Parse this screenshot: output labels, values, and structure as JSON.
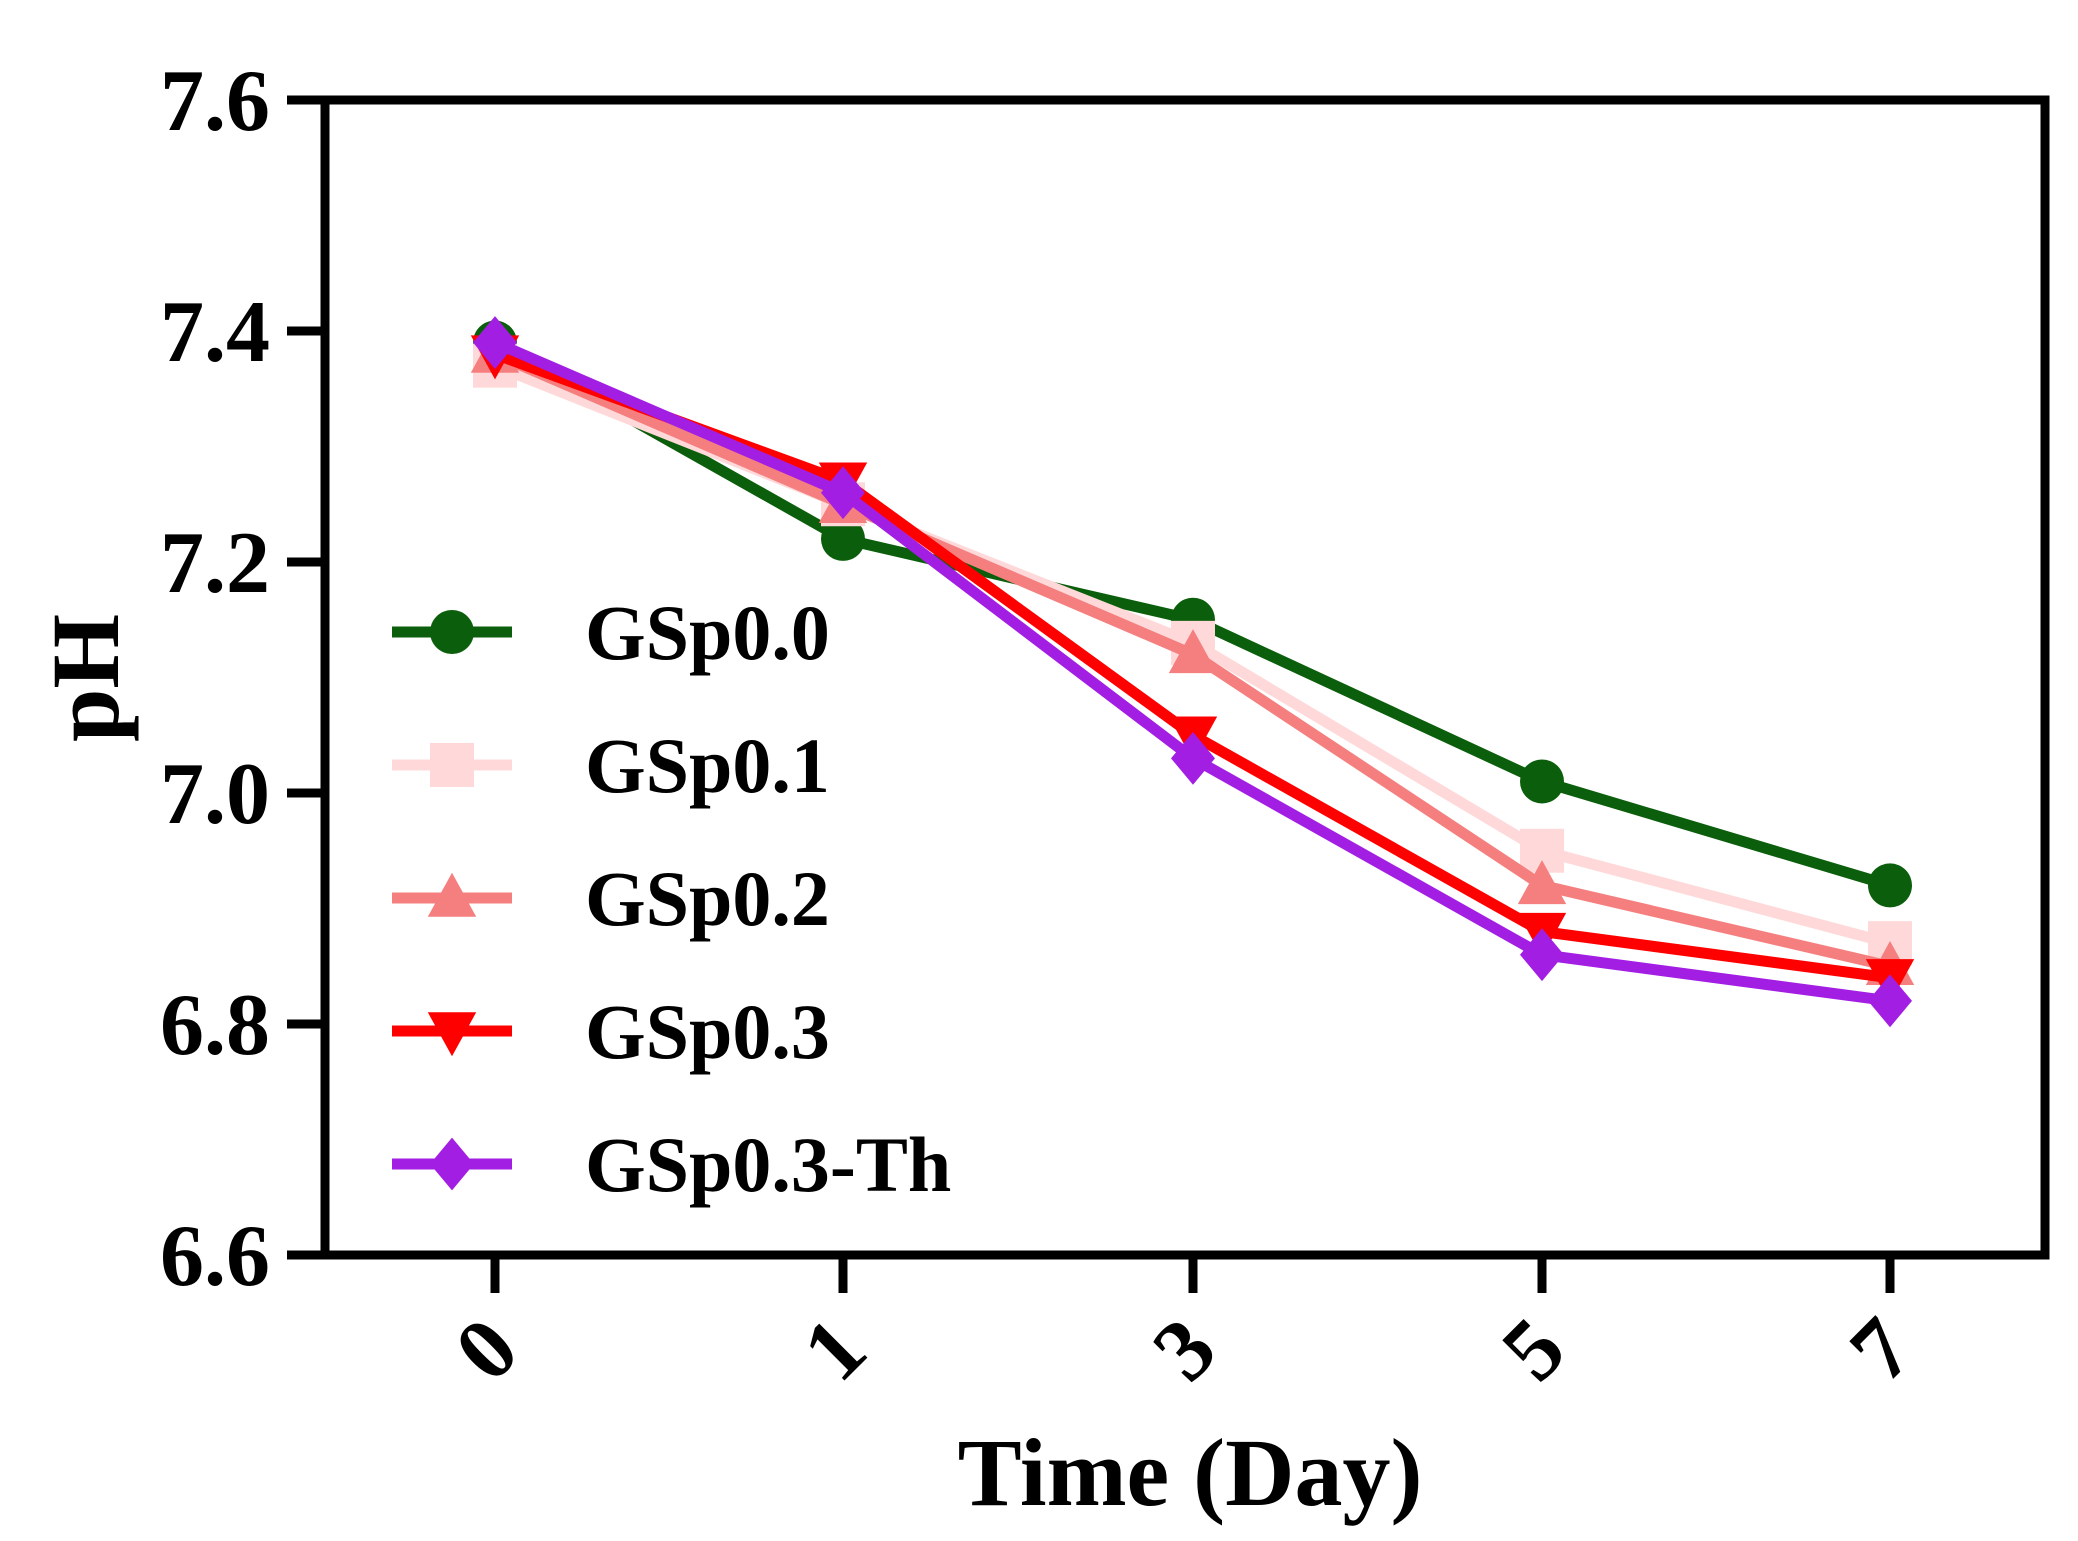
{
  "chart_data": {
    "type": "line",
    "title": "",
    "xlabel": "Time (Day)",
    "ylabel": "pH",
    "categories": [
      "0",
      "1",
      "3",
      "5",
      "7"
    ],
    "ylim": [
      6.6,
      7.6
    ],
    "yticks": [
      "6.6",
      "6.8",
      "7.0",
      "7.2",
      "7.4",
      "7.6"
    ],
    "legend_position": "left-center",
    "grid": false,
    "series": [
      {
        "name": "GSp0.0",
        "color": "#0b5e0b",
        "marker": "circle",
        "values": [
          7.39,
          7.22,
          7.15,
          7.01,
          6.92
        ]
      },
      {
        "name": "GSp0.1",
        "color": "#ffd9d9",
        "marker": "square",
        "values": [
          7.37,
          7.25,
          7.13,
          6.95,
          6.87
        ]
      },
      {
        "name": "GSp0.2",
        "color": "#f57f7f",
        "marker": "triangle-up",
        "values": [
          7.38,
          7.25,
          7.12,
          6.92,
          6.85
        ]
      },
      {
        "name": "GSp0.3",
        "color": "#ff0000",
        "marker": "triangle-down",
        "values": [
          7.38,
          7.27,
          7.05,
          6.88,
          6.84
        ]
      },
      {
        "name": "GSp0.3-Th",
        "color": "#a31ee3",
        "marker": "diamond",
        "values": [
          7.39,
          7.26,
          7.03,
          6.86,
          6.82
        ]
      }
    ]
  }
}
